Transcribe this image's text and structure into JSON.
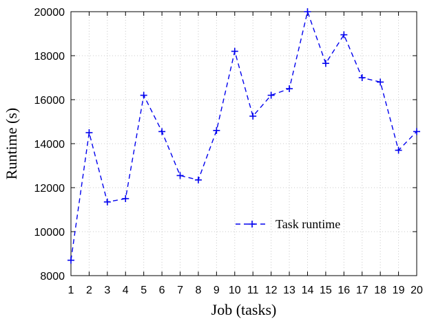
{
  "chart_data": {
    "type": "line",
    "title": "",
    "xlabel": "Job (tasks)",
    "ylabel": "Runtime (s)",
    "xlim": [
      1,
      20
    ],
    "ylim": [
      8000,
      20000
    ],
    "x_ticks": [
      "1",
      "2",
      "3",
      "4",
      "5",
      "6",
      "7",
      "8",
      "9",
      "10",
      "11",
      "12",
      "13",
      "14",
      "15",
      "16",
      "17",
      "18",
      "19",
      "20"
    ],
    "y_ticks": [
      "8000",
      "10000",
      "12000",
      "14000",
      "16000",
      "18000",
      "20000"
    ],
    "grid": true,
    "legend_position": "bottom-right",
    "series": [
      {
        "name": "Task runtime",
        "color": "#0000ee",
        "line_style": "dashed",
        "marker": "plus",
        "x": [
          1,
          2,
          3,
          4,
          5,
          6,
          7,
          8,
          9,
          10,
          11,
          12,
          13,
          14,
          15,
          16,
          17,
          18,
          19,
          20
        ],
        "y": [
          8700,
          14500,
          11350,
          11500,
          16200,
          14550,
          12550,
          12350,
          14600,
          18200,
          15250,
          16200,
          16500,
          20000,
          17650,
          18950,
          17000,
          16800,
          13700,
          14550
        ]
      }
    ]
  }
}
